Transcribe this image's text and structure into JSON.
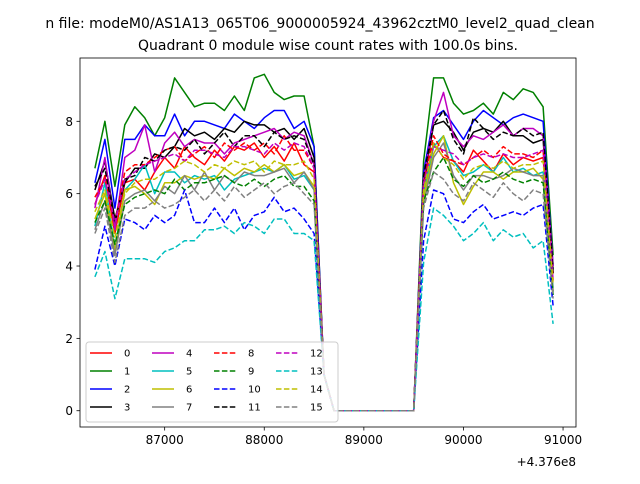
{
  "suptitle": "n file: modeM0/AS1A13_065T06_9000005924_43962cztM0_level2_quad_clean",
  "chart_data": {
    "type": "line",
    "title": "Quadrant 0 module wise count rates with 100.0s bins.",
    "xlabel": "",
    "ylabel": "",
    "x_offset_label": "+4.376e8",
    "xlim": [
      86150,
      91130
    ],
    "ylim": [
      -0.45,
      9.75
    ],
    "xticks": [
      87000,
      88000,
      89000,
      90000,
      91000
    ],
    "yticks": [
      0,
      2,
      4,
      6,
      8
    ],
    "grid": false,
    "legend_loc": "lower left",
    "x": [
      86300,
      86400,
      86500,
      86600,
      86700,
      86800,
      86900,
      87000,
      87100,
      87200,
      87300,
      87400,
      87500,
      87600,
      87700,
      87800,
      87900,
      88000,
      88100,
      88200,
      88300,
      88400,
      88500,
      88600,
      88700,
      88800,
      88900,
      89000,
      89100,
      89200,
      89300,
      89400,
      89500,
      89600,
      89700,
      89800,
      89900,
      90000,
      90100,
      90200,
      90300,
      90400,
      90500,
      90600,
      90700,
      90800,
      90900
    ],
    "series": [
      {
        "name": "0",
        "color": "#ff0000",
        "dash": "solid",
        "values": [
          5.7,
          6.5,
          4.9,
          6.3,
          6.4,
          6.1,
          6.6,
          7.0,
          6.7,
          7.3,
          7.0,
          6.8,
          7.2,
          6.9,
          7.3,
          7.2,
          7.4,
          7.0,
          7.3,
          6.9,
          7.4,
          6.8,
          6.6,
          1.0,
          0,
          0,
          0,
          0,
          0,
          0,
          0,
          0,
          0,
          6.2,
          7.4,
          7.0,
          6.9,
          6.6,
          7.2,
          6.9,
          6.6,
          7.1,
          6.8,
          7.0,
          6.9,
          7.0,
          3.8
        ]
      },
      {
        "name": "1",
        "color": "#008000",
        "dash": "solid",
        "values": [
          6.7,
          8.0,
          6.2,
          7.9,
          8.4,
          8.1,
          7.6,
          8.1,
          9.2,
          8.8,
          8.4,
          8.5,
          8.5,
          8.3,
          8.7,
          8.3,
          9.2,
          9.3,
          8.8,
          8.6,
          8.7,
          8.7,
          7.3,
          1.0,
          0,
          0,
          0,
          0,
          0,
          0,
          0,
          0,
          0,
          6.9,
          9.2,
          9.2,
          8.5,
          8.2,
          8.3,
          8.5,
          8.2,
          8.8,
          8.6,
          8.9,
          8.8,
          8.4,
          4.3
        ]
      },
      {
        "name": "2",
        "color": "#0000ff",
        "dash": "solid",
        "values": [
          6.3,
          7.5,
          5.6,
          7.5,
          7.5,
          7.9,
          7.6,
          7.6,
          8.2,
          7.6,
          8.0,
          8.0,
          7.9,
          7.8,
          8.2,
          8.0,
          7.8,
          8.1,
          8.3,
          8.3,
          7.8,
          8.0,
          7.3,
          1.0,
          0,
          0,
          0,
          0,
          0,
          0,
          0,
          0,
          0,
          6.6,
          8.1,
          8.3,
          7.9,
          7.5,
          8.0,
          8.3,
          8.1,
          7.9,
          8.1,
          8.2,
          8.1,
          8.0,
          4.0
        ]
      },
      {
        "name": "3",
        "color": "#000000",
        "dash": "solid",
        "values": [
          6.1,
          6.9,
          5.3,
          6.3,
          6.7,
          6.7,
          7.1,
          7.0,
          7.3,
          7.8,
          7.6,
          7.7,
          7.5,
          7.8,
          7.7,
          8.0,
          7.9,
          7.9,
          7.7,
          7.8,
          7.5,
          7.8,
          7.0,
          1.0,
          0,
          0,
          0,
          0,
          0,
          0,
          0,
          0,
          0,
          6.3,
          7.9,
          8.0,
          7.7,
          7.2,
          7.7,
          7.8,
          7.7,
          8.0,
          7.6,
          7.6,
          7.4,
          7.5,
          3.8
        ]
      },
      {
        "name": "4",
        "color": "#bf00bf",
        "dash": "solid",
        "values": [
          5.6,
          7.0,
          5.0,
          7.0,
          7.2,
          7.9,
          6.6,
          7.4,
          7.7,
          7.3,
          7.5,
          7.4,
          7.4,
          7.1,
          7.4,
          7.5,
          7.6,
          7.7,
          7.8,
          7.5,
          7.7,
          7.6,
          6.8,
          1.0,
          0,
          0,
          0,
          0,
          0,
          0,
          0,
          0,
          0,
          6.4,
          8.0,
          8.8,
          7.6,
          7.3,
          7.6,
          7.5,
          7.7,
          7.9,
          7.6,
          7.8,
          7.8,
          7.6,
          4.0
        ]
      },
      {
        "name": "5",
        "color": "#00bfbf",
        "dash": "solid",
        "values": [
          5.1,
          6.3,
          4.5,
          6.1,
          6.4,
          6.8,
          6.0,
          6.6,
          6.6,
          6.3,
          6.5,
          6.4,
          6.5,
          6.1,
          6.4,
          6.5,
          6.6,
          6.7,
          6.6,
          6.8,
          6.4,
          6.5,
          6.1,
          1.0,
          0,
          0,
          0,
          0,
          0,
          0,
          0,
          0,
          0,
          6.0,
          7.3,
          7.6,
          6.9,
          6.5,
          6.6,
          6.8,
          6.6,
          7.0,
          6.6,
          6.7,
          6.5,
          6.6,
          3.4
        ]
      },
      {
        "name": "6",
        "color": "#bfbf00",
        "dash": "solid",
        "values": [
          5.3,
          6.0,
          4.4,
          6.1,
          6.2,
          6.0,
          5.7,
          6.3,
          6.3,
          6.5,
          6.4,
          6.5,
          6.4,
          6.7,
          6.5,
          6.7,
          6.6,
          6.8,
          6.6,
          6.8,
          6.5,
          6.6,
          6.2,
          1.0,
          0,
          0,
          0,
          0,
          0,
          0,
          0,
          0,
          0,
          5.9,
          7.1,
          7.6,
          6.3,
          5.7,
          6.2,
          6.6,
          6.6,
          6.4,
          6.6,
          6.6,
          6.7,
          6.4,
          3.3
        ]
      },
      {
        "name": "7",
        "color": "#808080",
        "dash": "solid",
        "values": [
          5.0,
          5.8,
          4.3,
          5.8,
          6.0,
          6.1,
          5.8,
          6.2,
          6.0,
          6.5,
          6.1,
          6.6,
          6.1,
          6.5,
          6.3,
          6.6,
          6.5,
          6.5,
          6.6,
          6.7,
          6.3,
          6.6,
          6.1,
          1.0,
          0,
          0,
          0,
          0,
          0,
          0,
          0,
          0,
          0,
          5.7,
          7.0,
          7.4,
          6.5,
          6.1,
          6.5,
          6.5,
          6.4,
          6.5,
          6.7,
          6.6,
          6.5,
          6.5,
          3.3
        ]
      },
      {
        "name": "8",
        "color": "#ff0000",
        "dash": "dashed",
        "values": [
          5.9,
          6.4,
          5.2,
          6.6,
          6.8,
          6.8,
          7.0,
          7.2,
          7.3,
          6.9,
          7.1,
          7.3,
          7.0,
          7.4,
          7.2,
          7.4,
          7.2,
          7.4,
          7.1,
          7.6,
          7.2,
          7.2,
          6.7,
          1.0,
          0,
          0,
          0,
          0,
          0,
          0,
          0,
          0,
          0,
          6.3,
          7.6,
          7.1,
          6.9,
          6.8,
          7.0,
          7.2,
          7.0,
          7.3,
          7.1,
          7.1,
          7.0,
          7.2,
          3.6
        ]
      },
      {
        "name": "9",
        "color": "#008000",
        "dash": "dashed",
        "values": [
          5.2,
          5.8,
          4.6,
          5.7,
          5.9,
          6.0,
          6.1,
          6.0,
          6.4,
          6.1,
          6.3,
          6.3,
          6.4,
          6.5,
          6.3,
          6.2,
          6.4,
          6.2,
          6.4,
          6.5,
          6.2,
          6.2,
          5.8,
          1.0,
          0,
          0,
          0,
          0,
          0,
          0,
          0,
          0,
          0,
          5.8,
          6.6,
          7.0,
          6.4,
          6.2,
          6.5,
          6.3,
          6.4,
          6.6,
          6.4,
          6.3,
          6.4,
          6.3,
          3.2
        ]
      },
      {
        "name": "10",
        "color": "#0000ff",
        "dash": "dashed",
        "values": [
          3.9,
          5.1,
          4.0,
          5.3,
          5.2,
          5.0,
          5.4,
          5.2,
          5.4,
          6.1,
          5.2,
          5.2,
          5.6,
          5.2,
          5.6,
          5.0,
          5.4,
          5.5,
          5.9,
          5.5,
          5.6,
          5.3,
          4.9,
          1.0,
          0,
          0,
          0,
          0,
          0,
          0,
          0,
          0,
          0,
          4.7,
          6.1,
          6.0,
          5.3,
          5.2,
          5.5,
          5.7,
          5.3,
          5.4,
          5.5,
          5.4,
          5.6,
          5.7,
          2.9
        ]
      },
      {
        "name": "11",
        "color": "#000000",
        "dash": "dashed",
        "values": [
          6.2,
          6.7,
          5.2,
          6.4,
          6.5,
          7.0,
          6.9,
          7.2,
          7.3,
          7.2,
          7.5,
          7.1,
          7.4,
          7.7,
          7.3,
          7.6,
          7.6,
          7.3,
          7.7,
          7.5,
          7.6,
          7.5,
          6.8,
          1.0,
          0,
          0,
          0,
          0,
          0,
          0,
          0,
          0,
          0,
          6.5,
          7.9,
          8.3,
          7.5,
          7.1,
          8.1,
          7.8,
          7.5,
          7.7,
          7.6,
          7.8,
          7.6,
          7.7,
          3.9
        ]
      },
      {
        "name": "12",
        "color": "#bf00bf",
        "dash": "dashed",
        "values": [
          5.7,
          6.4,
          5.2,
          6.4,
          6.6,
          6.8,
          6.9,
          7.0,
          7.1,
          6.9,
          7.2,
          7.2,
          7.1,
          7.0,
          7.3,
          7.3,
          7.2,
          7.1,
          7.4,
          7.2,
          7.4,
          7.3,
          6.7,
          1.0,
          0,
          0,
          0,
          0,
          0,
          0,
          0,
          0,
          0,
          6.3,
          7.3,
          7.2,
          7.1,
          6.8,
          7.0,
          7.1,
          7.0,
          7.1,
          7.0,
          7.0,
          7.1,
          7.2,
          3.6
        ]
      },
      {
        "name": "13",
        "color": "#00bfbf",
        "dash": "dashed",
        "values": [
          3.7,
          4.4,
          3.1,
          4.2,
          4.2,
          4.2,
          4.1,
          4.4,
          4.5,
          4.7,
          4.7,
          5.0,
          5.0,
          5.1,
          4.9,
          5.2,
          5.1,
          4.9,
          5.3,
          5.3,
          4.9,
          4.9,
          4.7,
          1.0,
          0,
          0,
          0,
          0,
          0,
          0,
          0,
          0,
          0,
          4.1,
          5.6,
          5.4,
          5.1,
          4.7,
          4.9,
          5.2,
          4.7,
          5.0,
          4.8,
          4.9,
          4.5,
          4.7,
          2.4
        ]
      },
      {
        "name": "14",
        "color": "#bfbf00",
        "dash": "dashed",
        "values": [
          5.5,
          6.1,
          4.8,
          6.0,
          6.3,
          6.4,
          6.4,
          6.6,
          6.7,
          6.9,
          6.8,
          6.6,
          6.8,
          6.7,
          6.9,
          6.8,
          6.9,
          6.6,
          6.9,
          6.8,
          6.8,
          6.9,
          6.4,
          1.0,
          0,
          0,
          0,
          0,
          0,
          0,
          0,
          0,
          0,
          6.1,
          7.4,
          7.0,
          6.8,
          6.4,
          6.7,
          6.8,
          6.7,
          6.9,
          6.7,
          6.8,
          6.8,
          6.9,
          3.5
        ]
      },
      {
        "name": "15",
        "color": "#808080",
        "dash": "dashed",
        "values": [
          4.9,
          5.6,
          4.1,
          5.4,
          5.6,
          5.6,
          5.8,
          5.6,
          5.7,
          5.9,
          6.1,
          5.8,
          6.1,
          5.8,
          6.2,
          5.9,
          6.1,
          6.3,
          6.0,
          6.2,
          6.3,
          6.0,
          5.7,
          1.0,
          0,
          0,
          0,
          0,
          0,
          0,
          0,
          0,
          0,
          5.6,
          6.6,
          6.4,
          6.0,
          5.8,
          6.3,
          6.1,
          5.9,
          6.3,
          6.0,
          5.8,
          6.1,
          6.0,
          3.1
        ]
      }
    ]
  }
}
